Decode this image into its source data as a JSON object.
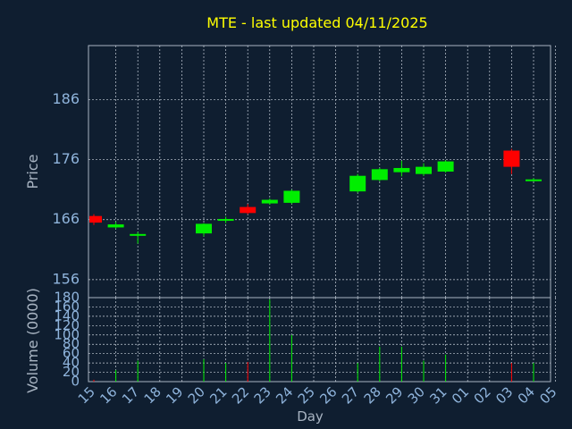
{
  "chart_data": {
    "type": "candlestick",
    "title": "MTE - last updated 04/11/2025",
    "price_panel": {
      "ylabel": "Price",
      "ylim": [
        153,
        195
      ],
      "yticks": [
        156,
        166,
        176,
        186
      ],
      "grid": true
    },
    "volume_panel": {
      "ylabel": "Volume (0000)",
      "ylim": [
        0,
        180
      ],
      "yticks": [
        0,
        20,
        40,
        60,
        80,
        100,
        120,
        140,
        160,
        180
      ],
      "grid": true
    },
    "xlabel": "Day",
    "x_ticks": [
      "15",
      "16",
      "17",
      "18",
      "19",
      "20",
      "21",
      "22",
      "23",
      "24",
      "25",
      "26",
      "27",
      "28",
      "29",
      "30",
      "31",
      "01",
      "02",
      "03",
      "04",
      "05"
    ],
    "candles": [
      {
        "day": "15",
        "open": 166.6,
        "high": 166.9,
        "low": 165.1,
        "close": 165.5,
        "volume": 4
      },
      {
        "day": "16",
        "open": 164.7,
        "high": 165.6,
        "low": 164.5,
        "close": 165.2,
        "volume": 25
      },
      {
        "day": "17",
        "open": 163.3,
        "high": 163.9,
        "low": 162.0,
        "close": 163.6,
        "volume": 45
      },
      {
        "day": "20",
        "open": 163.7,
        "high": 165.4,
        "low": 163.2,
        "close": 165.3,
        "volume": 48
      },
      {
        "day": "21",
        "open": 165.8,
        "high": 166.5,
        "low": 165.4,
        "close": 166.1,
        "volume": 40
      },
      {
        "day": "22",
        "open": 168.1,
        "high": 168.6,
        "low": 166.9,
        "close": 167.1,
        "volume": 42
      },
      {
        "day": "23",
        "open": 168.7,
        "high": 169.5,
        "low": 168.5,
        "close": 169.3,
        "volume": 176
      },
      {
        "day": "24",
        "open": 168.8,
        "high": 171.0,
        "low": 168.6,
        "close": 170.8,
        "volume": 100
      },
      {
        "day": "27",
        "open": 170.7,
        "high": 173.6,
        "low": 170.5,
        "close": 173.3,
        "volume": 40
      },
      {
        "day": "28",
        "open": 172.6,
        "high": 174.6,
        "low": 172.4,
        "close": 174.4,
        "volume": 75
      },
      {
        "day": "29",
        "open": 173.9,
        "high": 175.8,
        "low": 173.2,
        "close": 174.6,
        "volume": 75
      },
      {
        "day": "30",
        "open": 173.6,
        "high": 175.4,
        "low": 173.3,
        "close": 174.8,
        "volume": 45
      },
      {
        "day": "31",
        "open": 174.0,
        "high": 175.9,
        "low": 173.8,
        "close": 175.7,
        "volume": 58
      },
      {
        "day": "03",
        "open": 177.5,
        "high": 177.8,
        "low": 173.6,
        "close": 174.8,
        "volume": 40
      },
      {
        "day": "04",
        "open": 172.6,
        "high": 172.9,
        "low": 172.4,
        "close": 172.7,
        "volume": 40
      }
    ],
    "colors": {
      "up": "#00ee00",
      "down": "#ff0000",
      "background": "#0f1e30",
      "axis": "#a8b4c2",
      "grid": "#c8d0da",
      "title": "#ffff00",
      "tick_label": "#8fb4dc",
      "axis_label": "#a8b4c2"
    }
  }
}
